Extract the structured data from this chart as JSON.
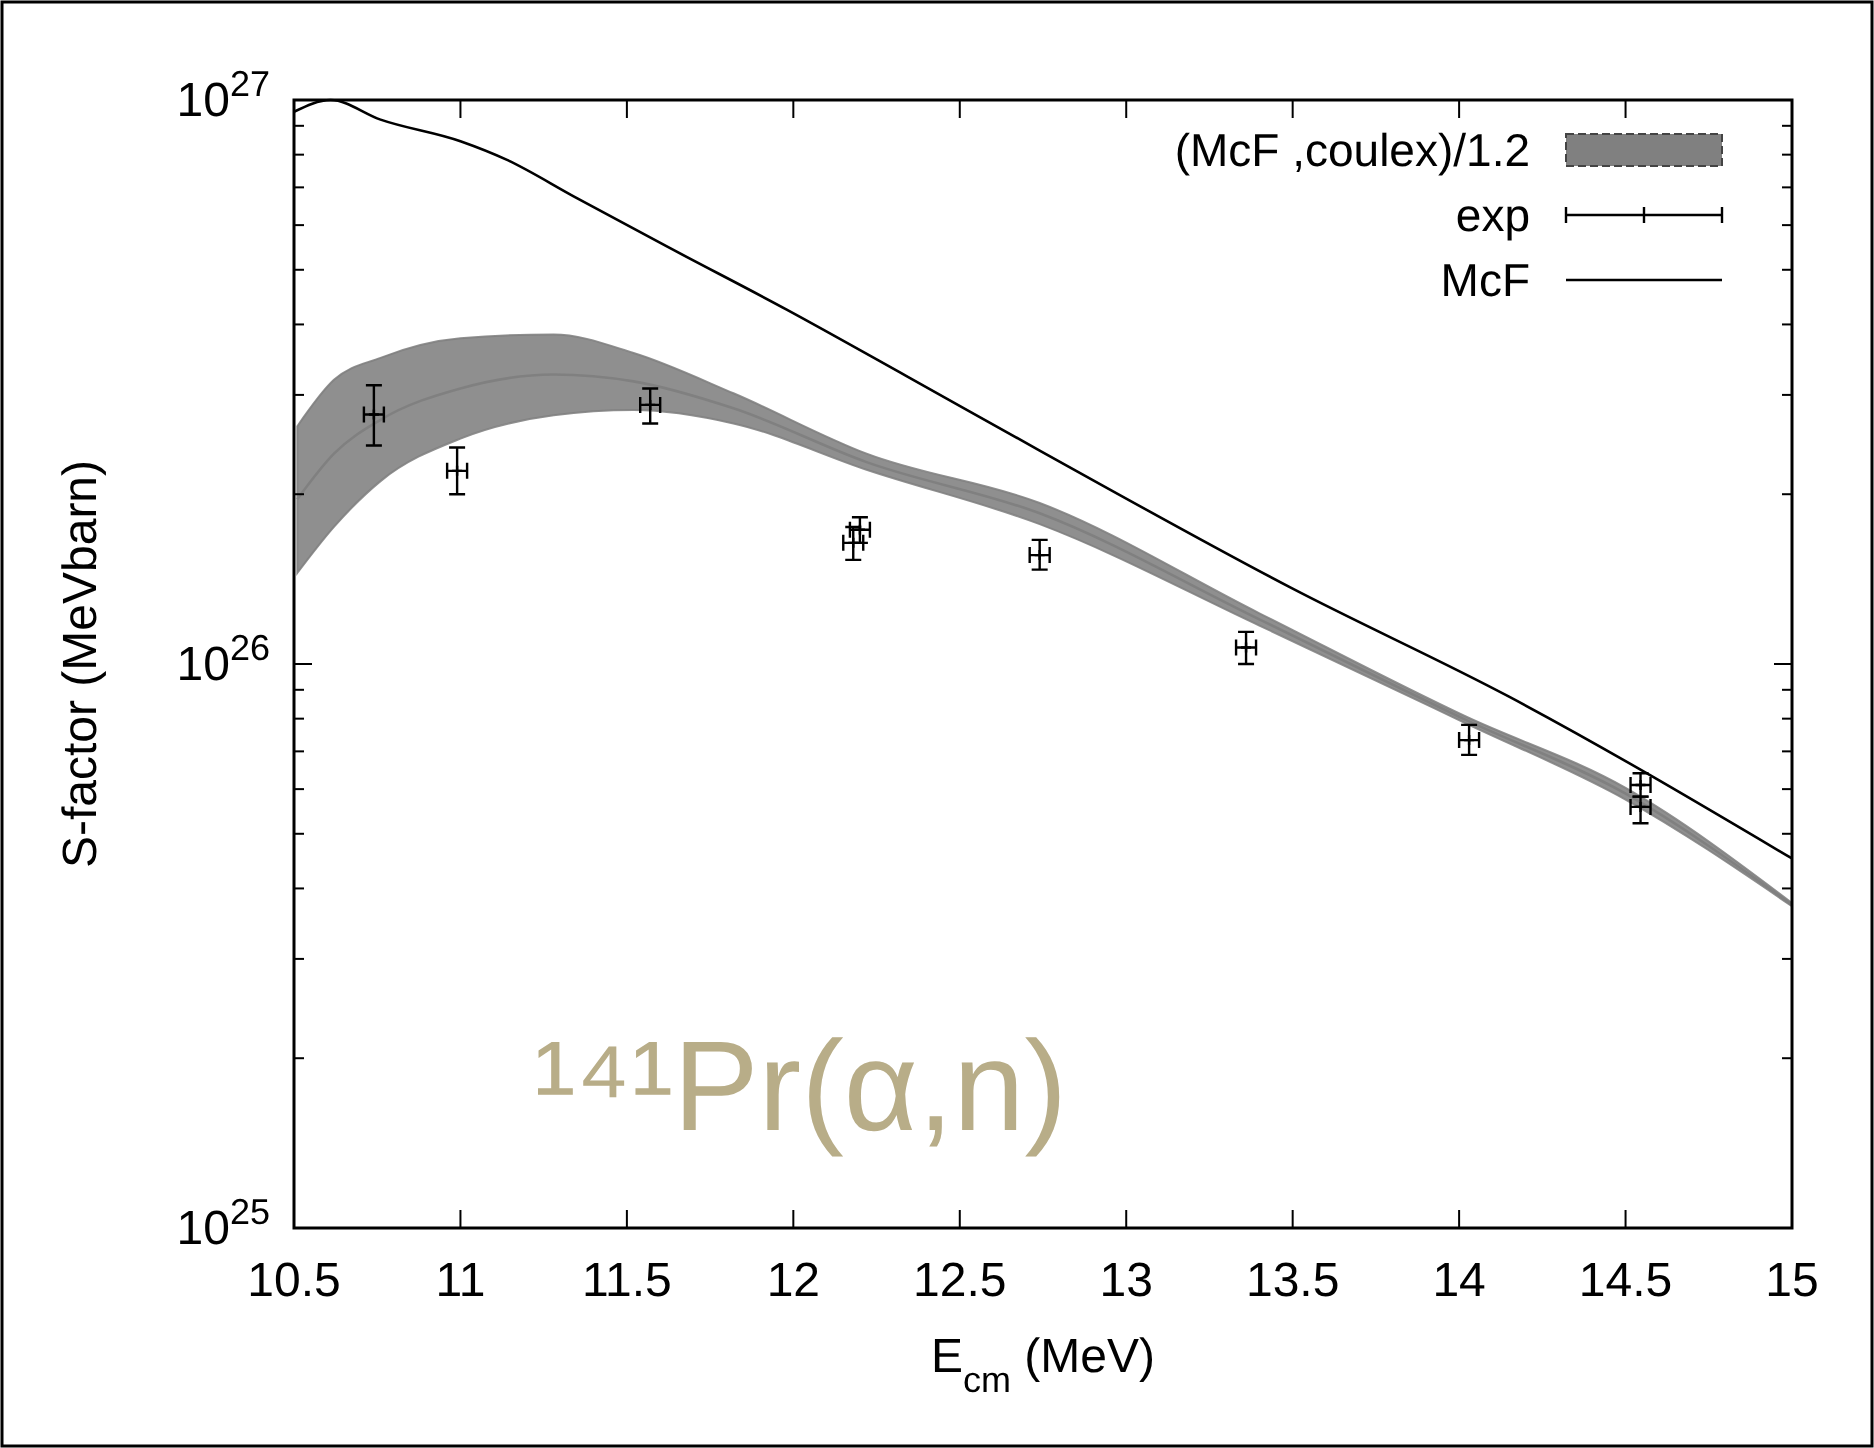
{
  "chart_data": {
    "type": "line",
    "xlabel": "E$_{cm}$ (MeV)",
    "ylabel": "S-factor (MeVbarn)",
    "log": "y",
    "xlim": [
      10.5,
      15
    ],
    "ylim": [
      1e+25,
      1e+27
    ],
    "xticks": [
      10.5,
      11,
      11.5,
      12,
      12.5,
      13,
      13.5,
      14,
      14.5,
      15
    ],
    "yticks": [
      {
        "value": 1e+25,
        "label": "10$^{25}$"
      },
      {
        "value": 2e+25,
        "label": null
      },
      {
        "value": 3e+25,
        "label": null
      },
      {
        "value": 4e+25,
        "label": null
      },
      {
        "value": 5e+25,
        "label": null
      },
      {
        "value": 6e+25,
        "label": null
      },
      {
        "value": 7e+25,
        "label": null
      },
      {
        "value": 8e+25,
        "label": null
      },
      {
        "value": 9e+25,
        "label": null
      },
      {
        "value": 1e+26,
        "label": "10$^{26}$"
      },
      {
        "value": 2e+26,
        "label": null
      },
      {
        "value": 3e+26,
        "label": null
      },
      {
        "value": 4e+26,
        "label": null
      },
      {
        "value": 5e+26,
        "label": null
      },
      {
        "value": 6e+26,
        "label": null
      },
      {
        "value": 7e+26,
        "label": null
      },
      {
        "value": 8e+26,
        "label": null
      },
      {
        "value": 9e+26,
        "label": null
      },
      {
        "value": 1e+27,
        "label": "10$^{27}$"
      }
    ],
    "legend": "top right",
    "grid": false,
    "annotations": [
      "¹⁴¹Pr(α,n)"
    ],
    "series": [
      {
        "name": "(McF  ,coulex)/1.2",
        "color": "#808080",
        "x": [
          10.51,
          10.62,
          10.76,
          11.0,
          11.28,
          11.52,
          11.82,
          12.22,
          12.74,
          13.4,
          14.02,
          14.5,
          15
        ],
        "lower": [
          1.45e+26,
          1.75e+26,
          2.11e+26,
          2.51e+26,
          2.76e+26,
          2.82e+26,
          2.67e+26,
          2.21e+26,
          1.77e+26,
          1.17e+26,
          7.85e+25,
          5.75e+25,
          3.72e+25
        ],
        "upper": [
          2.64e+26,
          3.19e+26,
          3.49e+26,
          3.78e+26,
          3.84e+26,
          3.56e+26,
          3.02e+26,
          2.36e+26,
          1.93e+26,
          1.23e+26,
          8.07e+25,
          6.03e+25,
          3.77e+25
        ],
        "values": [
          1.96e+26,
          2.36e+26,
          2.71e+26,
          3.08e+26,
          3.26e+26,
          3.17e+26,
          2.84e+26,
          2.28e+26,
          1.85e+26,
          1.2e+26,
          7.96e+25,
          5.89e+25,
          3.74e+25
        ]
      },
      {
        "name": "exp",
        "type": "scatter",
        "color": "#000000",
        "marker": "cross",
        "x": [
          10.74,
          10.99,
          11.57,
          12.18,
          12.2,
          12.74,
          13.36,
          14.03,
          14.545,
          14.545
        ],
        "values": [
          2.77e+26,
          2.2e+26,
          2.88e+26,
          1.64e+26,
          1.73e+26,
          1.56e+26,
          1.07e+26,
          7.33e+25,
          6.1e+25,
          5.58e+25
        ],
        "errors": [
          [
            2.44e+26,
            3.12e+26
          ],
          [
            2e+26,
            2.42e+26
          ],
          [
            2.67e+26,
            3.08e+26
          ],
          [
            1.53e+26,
            1.75e+26
          ],
          [
            1.64e+26,
            1.82e+26
          ],
          [
            1.47e+26,
            1.66e+26
          ],
          [
            1e+26,
            1.14e+26
          ],
          [
            6.9e+25,
            7.8e+25
          ],
          [
            5.82e+25,
            6.4e+25
          ],
          [
            5.22e+25,
            5.82e+25
          ]
        ],
        "xerrors": [
          0.03,
          0.03,
          0.03,
          0.03,
          0.03,
          0.03,
          0.03,
          0.03,
          0.03,
          0.03
        ]
      },
      {
        "name": "McF",
        "color": "#000000",
        "line_style": "solid",
        "x": [
          10.5,
          10.61,
          10.76,
          11.0,
          11.14,
          11.34,
          11.62,
          11.98,
          12.34,
          12.74,
          13.5,
          14.15,
          15
        ],
        "values": [
          9.53e+26,
          1e+27,
          9.23e+26,
          8.45e+26,
          7.83e+26,
          6.75e+26,
          5.5e+26,
          4.25e+26,
          3.24e+26,
          2.39e+26,
          1.36e+26,
          8.75e+25,
          4.52e+25
        ]
      }
    ]
  }
}
